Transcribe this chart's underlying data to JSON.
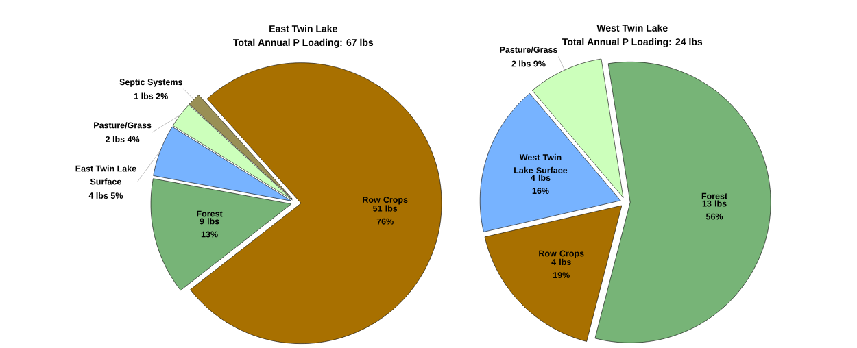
{
  "chart_data": [
    {
      "type": "pie",
      "title": "East Twin Lake",
      "subtitle": "Total Annual P Loading: 67 lbs",
      "categories": [
        "Row Crops",
        "Forest",
        "East Twin Lake Surface",
        "Pasture/Grass",
        "Septic Systems"
      ],
      "values": [
        51,
        9,
        4,
        2,
        1
      ],
      "value_labels": [
        "51 lbs 76%",
        "9 lbs 13%",
        "4 lbs 5%",
        "2 lbs 4%",
        "1 lbs 2%"
      ],
      "colors": [
        "#a87000",
        "#77b477",
        "#77b3ff",
        "#ccffbb",
        "#998f55"
      ]
    },
    {
      "type": "pie",
      "title": "West Twin Lake",
      "subtitle": "Total Annual P Loading: 24 lbs",
      "categories": [
        "Forest",
        "Row Crops",
        "West Twin Lake Surface",
        "Pasture/Grass"
      ],
      "values": [
        13,
        4,
        4,
        2
      ],
      "value_labels": [
        "13 lbs 56%",
        "4 lbs 19%",
        "4 lbs 16%",
        "2 lbs 9%"
      ],
      "colors": [
        "#77b477",
        "#a87000",
        "#77b3ff",
        "#ccffbb"
      ]
    }
  ]
}
